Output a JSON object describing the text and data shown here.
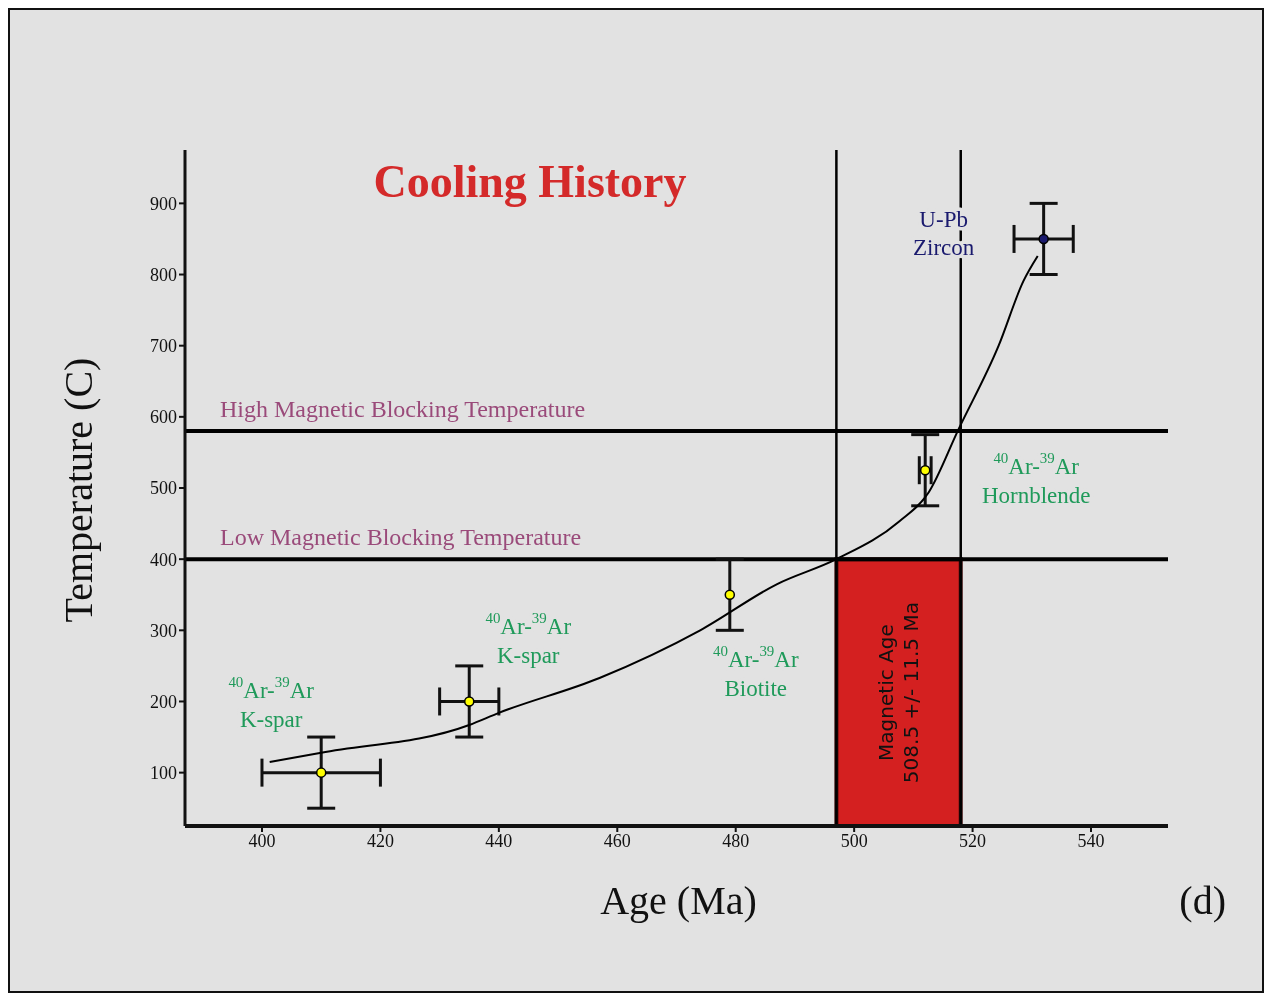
{
  "chart_data": {
    "type": "scatter",
    "title": "Cooling History",
    "xlabel": "Age (Ma)",
    "ylabel": "Temperature (C)",
    "xlim": [
      387,
      553
    ],
    "ylim": [
      25,
      975
    ],
    "xticks": [
      400,
      420,
      440,
      460,
      480,
      500,
      520,
      540
    ],
    "yticks": [
      100,
      200,
      300,
      400,
      500,
      600,
      700,
      800,
      900
    ],
    "grid": false,
    "marker": "circle",
    "series": [
      {
        "x": [
          410,
          435,
          479,
          512,
          532
        ],
        "values": [
          100,
          200,
          350,
          525,
          850
        ],
        "colors": [
          "#ffff00",
          "#ffff00",
          "#ffff00",
          "#ffff00",
          "#1a1a6e"
        ],
        "errors": [
          50,
          50,
          50,
          50,
          50
        ],
        "xerrors": [
          10,
          5,
          null,
          1,
          5
        ]
      },
      {
        "type": "line",
        "color": "#000000",
        "marker": "none",
        "x": [
          401.3,
          410,
          435,
          440,
          457,
          474,
          487,
          497,
          507.6,
          512.6,
          517.6,
          524.4,
          528.6,
          531
        ],
        "values": [
          115,
          128,
          167,
          184,
          233,
          300,
          365,
          400,
          453,
          494,
          582,
          700,
          791,
          826
        ]
      }
    ],
    "ref_lines": [
      {
        "axis": "y",
        "value": 580,
        "label": "High Magnetic Blocking Temperature",
        "color": "#000000"
      },
      {
        "axis": "y",
        "value": 400,
        "label": "Low Magnetic Blocking Temperature",
        "color": "#000000"
      },
      {
        "axis": "x",
        "value": 497,
        "color": "#000000"
      },
      {
        "axis": "x",
        "value": 518,
        "color": "#000000"
      }
    ],
    "bands": [
      {
        "axis": "x",
        "from": 497,
        "to": 518,
        "label": "Magnetic Age\n508.5 +/- 11.5 Ma",
        "color": "#d42020"
      }
    ],
    "annotations": [
      "$^{40}$Ar-$^{39}$Ar\nK-spar",
      "$^{40}$Ar-$^{39}$Ar\nK-spar",
      "$^{40}$Ar-$^{39}$Ar\nBiotite",
      "$^{40}$Ar-$^{39}$Ar\nHornblende",
      "U-Pb\nZircon",
      "(d)"
    ]
  }
}
